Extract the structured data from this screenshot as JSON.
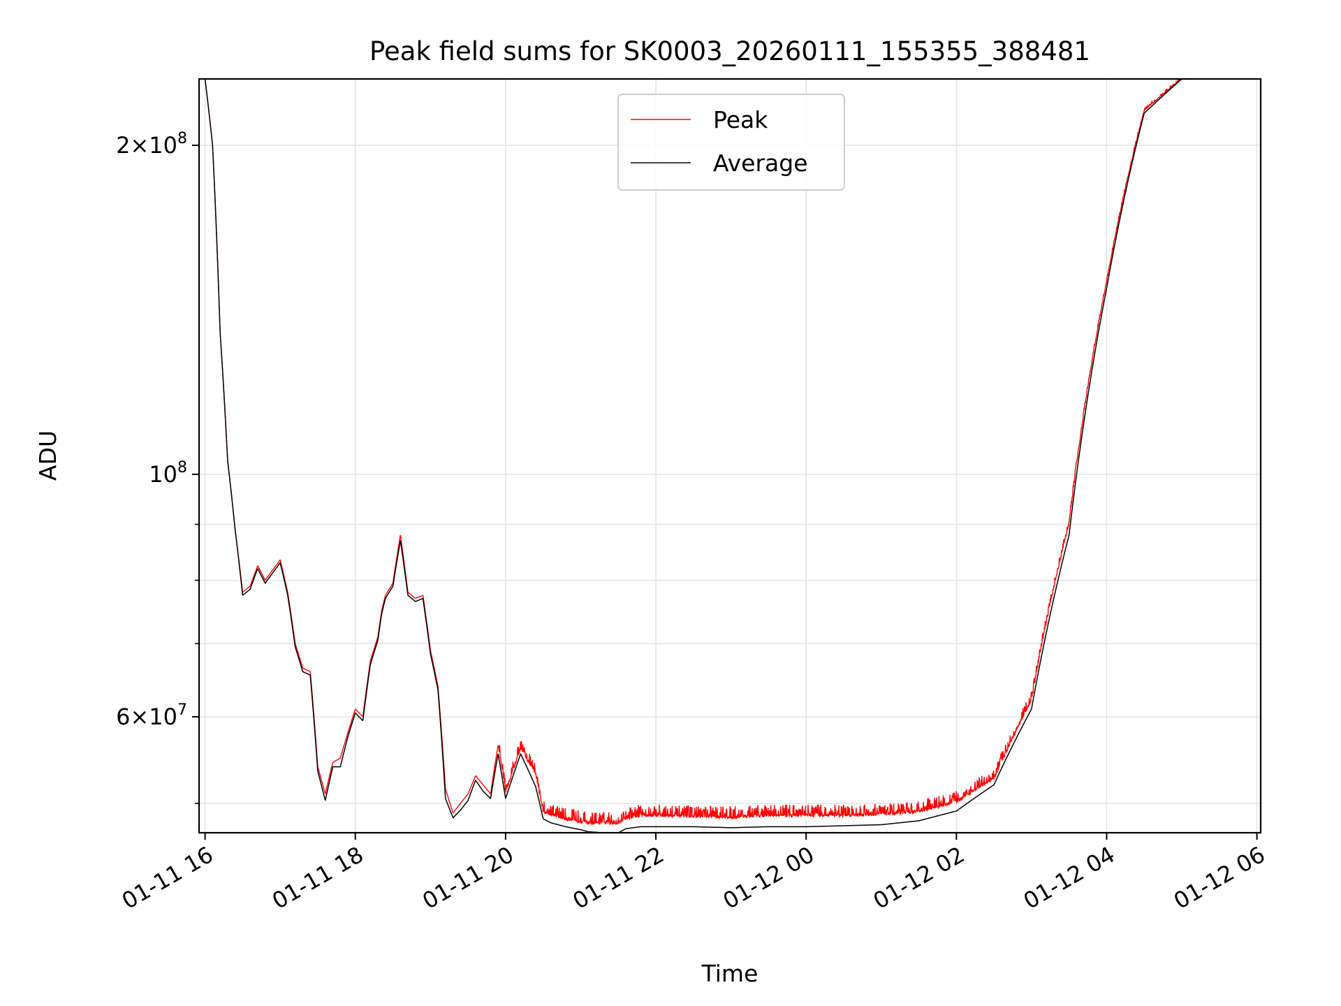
{
  "chart_data": {
    "type": "line",
    "title": "Peak field sums for SK0003_20260111_155355_388481",
    "xlabel": "Time",
    "ylabel": "ADU",
    "yscale": "log",
    "grid": true,
    "legend_position": "top-center",
    "x_ticks": [
      "01-11 16",
      "01-11 18",
      "01-11 20",
      "01-11 22",
      "01-12 00",
      "01-12 02",
      "01-12 04",
      "01-12 06"
    ],
    "x_tick_hours": [
      16,
      18,
      20,
      22,
      24,
      26,
      28,
      30
    ],
    "xlim_hours": [
      15.92,
      30.05
    ],
    "ylim": [
      47000000,
      230000000
    ],
    "y_major_ticks": [
      {
        "value": 200000000,
        "mantissa": "2",
        "exponent": "8"
      },
      {
        "value": 100000000,
        "mantissa": "",
        "exponent": "8"
      },
      {
        "value": 60000000,
        "mantissa": "6",
        "exponent": "7"
      }
    ],
    "y_minor_ticks": [
      50000000,
      70000000,
      80000000,
      90000000
    ],
    "series": [
      {
        "name": "Peak",
        "color": "#ff0000",
        "hour": [
          15.92,
          16.0,
          16.1,
          16.2,
          16.3,
          16.4,
          16.5,
          16.6,
          16.7,
          16.8,
          17.0,
          17.1,
          17.2,
          17.3,
          17.4,
          17.5,
          17.6,
          17.7,
          17.8,
          17.9,
          18.0,
          18.1,
          18.2,
          18.3,
          18.35,
          18.4,
          18.5,
          18.6,
          18.7,
          18.8,
          18.9,
          19.0,
          19.1,
          19.2,
          19.3,
          19.4,
          19.5,
          19.6,
          19.7,
          19.8,
          19.9,
          20.0,
          20.2,
          20.4,
          20.5,
          20.6,
          20.8,
          21.0,
          21.1,
          21.3,
          21.5,
          21.6,
          21.8,
          22.0,
          22.5,
          23.0,
          23.5,
          24.0,
          24.5,
          25.0,
          25.5,
          26.0,
          26.5,
          27.0,
          27.5,
          28.0,
          28.5,
          29.0,
          29.2,
          29.4,
          29.5,
          29.6,
          29.7,
          29.8,
          29.9,
          30.05
        ],
        "values": [
          230000000,
          230000000,
          200000000,
          135000000,
          103000000,
          89000000,
          78000000,
          79000000,
          82500000,
          80000000,
          83500000,
          78000000,
          70000000,
          66500000,
          66000000,
          54000000,
          51000000,
          54500000,
          55000000,
          58000000,
          61000000,
          60000000,
          67500000,
          71000000,
          75000000,
          77500000,
          79500000,
          88000000,
          78000000,
          77000000,
          77500000,
          69000000,
          64000000,
          51500000,
          49000000,
          50000000,
          51000000,
          53000000,
          52000000,
          51000000,
          56500000,
          51000000,
          56000000,
          53000000,
          49000000,
          48700000,
          48200000,
          48000000,
          47800000,
          47800000,
          47800000,
          48300000,
          48600000,
          48600000,
          48500000,
          48400000,
          48600000,
          48600000,
          48600000,
          48700000,
          49000000,
          50000000,
          52500000,
          62000000,
          90000000,
          150000000,
          215000000,
          230000000,
          230000000,
          230000000,
          230000000,
          230000000,
          230000000,
          230000000,
          230000000,
          230000000
        ],
        "noise_amplitude_adu": 1300000
      },
      {
        "name": "Average",
        "color": "#000000",
        "hour": [
          15.92,
          16.0,
          16.1,
          16.2,
          16.3,
          16.4,
          16.5,
          16.6,
          16.7,
          16.8,
          17.0,
          17.1,
          17.2,
          17.3,
          17.4,
          17.5,
          17.6,
          17.7,
          17.8,
          17.9,
          18.0,
          18.1,
          18.2,
          18.3,
          18.35,
          18.4,
          18.5,
          18.6,
          18.7,
          18.8,
          18.9,
          19.0,
          19.1,
          19.2,
          19.3,
          19.4,
          19.5,
          19.6,
          19.7,
          19.8,
          19.9,
          20.0,
          20.2,
          20.4,
          20.5,
          20.6,
          20.8,
          21.0,
          21.1,
          21.3,
          21.5,
          21.6,
          21.8,
          22.0,
          22.5,
          23.0,
          23.5,
          24.0,
          24.5,
          25.0,
          25.5,
          26.0,
          26.5,
          27.0,
          27.5,
          28.0,
          28.5,
          29.0,
          29.2,
          29.4,
          29.5,
          29.6,
          29.7,
          29.8,
          29.9,
          30.05
        ],
        "values": [
          230000000,
          230000000,
          200000000,
          135000000,
          103000000,
          89000000,
          77500000,
          78500000,
          82000000,
          79500000,
          83000000,
          77500000,
          69500000,
          66000000,
          65500000,
          53500000,
          50300000,
          54000000,
          54000000,
          57500000,
          60500000,
          59500000,
          67000000,
          70500000,
          74500000,
          77000000,
          79000000,
          87000000,
          77500000,
          76500000,
          77000000,
          68500000,
          63500000,
          50500000,
          48500000,
          49300000,
          50300000,
          52500000,
          51300000,
          50500000,
          55500000,
          50500000,
          55500000,
          51800000,
          48400000,
          48000000,
          47600000,
          47300000,
          47100000,
          47000000,
          47000000,
          47400000,
          47600000,
          47600000,
          47600000,
          47500000,
          47600000,
          47600000,
          47700000,
          47800000,
          48200000,
          49200000,
          52000000,
          61000000,
          88000000,
          148000000,
          214000000,
          230000000,
          230000000,
          230000000,
          230000000,
          230000000,
          230000000,
          230000000,
          230000000,
          230000000
        ]
      }
    ]
  }
}
